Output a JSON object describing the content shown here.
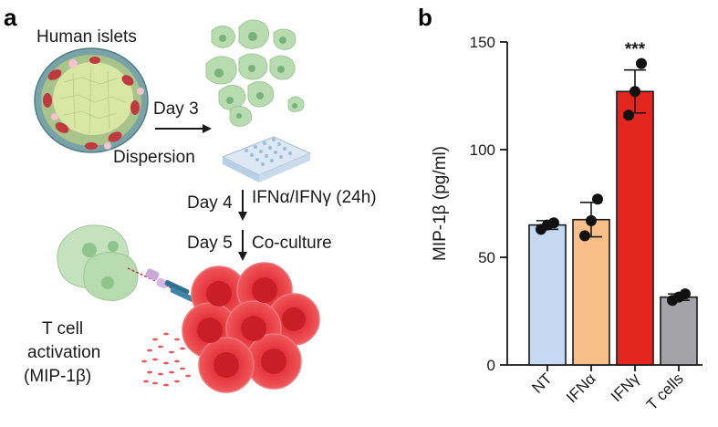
{
  "panel_a": {
    "letter": "a",
    "islets_label": "Human islets",
    "day3_label": "Day 3",
    "dispersion_label": "Dispersion",
    "day4_label": "Day 4",
    "treatment_label": "IFNα/IFNγ (24h)",
    "day5_label": "Day 5",
    "coculture_label": "Co-culture",
    "activation_line1": "T cell",
    "activation_line2": "activation",
    "activation_line3": "(MIP-1β)"
  },
  "panel_b": {
    "letter": "b"
  },
  "chart_data": {
    "type": "bar",
    "title": "",
    "xlabel": "",
    "ylabel": "MIP-1β (pg/ml)",
    "ylim": [
      0,
      150
    ],
    "yticks": [
      0,
      50,
      100,
      150
    ],
    "categories": [
      "NT",
      "IFNα",
      "IFNγ",
      "T cells"
    ],
    "values": [
      65,
      67.5,
      127,
      31.5
    ],
    "error": [
      2,
      8,
      10,
      1.5
    ],
    "points": [
      [
        63,
        65,
        66
      ],
      [
        60,
        67,
        77
      ],
      [
        116,
        127,
        140
      ],
      [
        30,
        31.5,
        33
      ]
    ],
    "colors": [
      "#c5d8f2",
      "#f8bf88",
      "#e3261f",
      "#a4a4a8"
    ],
    "annotations": [
      {
        "category": "IFNγ",
        "text": "***"
      }
    ],
    "grid": false,
    "legend": "none"
  }
}
